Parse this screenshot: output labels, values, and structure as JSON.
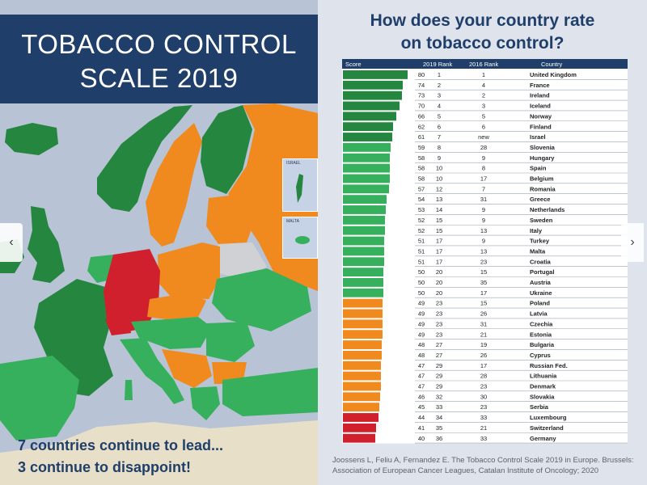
{
  "poster": {
    "title_line1": "TOBACCO CONTROL",
    "title_line2": "SCALE 2019",
    "subtitle_line1": "7 countries continue to lead...",
    "subtitle_line2": "3 continue to disappoint!",
    "inset_israel": "ISRAEL",
    "inset_malta": "MALTA"
  },
  "nav": {
    "prev_icon": "‹",
    "next_icon": "›"
  },
  "colors": {
    "navy": "#1f3f6a",
    "dark_green": "#24863f",
    "green": "#36b05c",
    "orange": "#f08a1e",
    "red": "#d0202e",
    "grey": "#cfd1d4"
  },
  "chart_data": {
    "type": "bar",
    "title": "How does your country rate on tobacco control?",
    "columns": [
      "Score",
      "2019 Rank",
      "2016 Rank",
      "Country"
    ],
    "rows": [
      {
        "score": 80,
        "rank2019": "1",
        "rank2016": "1",
        "country": "United Kingdom",
        "group": "dark_green"
      },
      {
        "score": 74,
        "rank2019": "2",
        "rank2016": "4",
        "country": "France",
        "group": "dark_green"
      },
      {
        "score": 73,
        "rank2019": "3",
        "rank2016": "2",
        "country": "Ireland",
        "group": "dark_green"
      },
      {
        "score": 70,
        "rank2019": "4",
        "rank2016": "3",
        "country": "Iceland",
        "group": "dark_green"
      },
      {
        "score": 66,
        "rank2019": "5",
        "rank2016": "5",
        "country": "Norway",
        "group": "dark_green"
      },
      {
        "score": 62,
        "rank2019": "6",
        "rank2016": "6",
        "country": "Finland",
        "group": "dark_green"
      },
      {
        "score": 61,
        "rank2019": "7",
        "rank2016": "new",
        "country": "Israel",
        "group": "dark_green"
      },
      {
        "score": 59,
        "rank2019": "8",
        "rank2016": "28",
        "country": "Slovenia",
        "group": "green"
      },
      {
        "score": 58,
        "rank2019": "9",
        "rank2016": "9",
        "country": "Hungary",
        "group": "green"
      },
      {
        "score": 58,
        "rank2019": "10",
        "rank2016": "8",
        "country": "Spain",
        "group": "green"
      },
      {
        "score": 58,
        "rank2019": "10",
        "rank2016": "17",
        "country": "Belgium",
        "group": "green"
      },
      {
        "score": 57,
        "rank2019": "12",
        "rank2016": "7",
        "country": "Romania",
        "group": "green"
      },
      {
        "score": 54,
        "rank2019": "13",
        "rank2016": "31",
        "country": "Greece",
        "group": "green"
      },
      {
        "score": 53,
        "rank2019": "14",
        "rank2016": "9",
        "country": "Netherlands",
        "group": "green"
      },
      {
        "score": 52,
        "rank2019": "15",
        "rank2016": "9",
        "country": "Sweden",
        "group": "green"
      },
      {
        "score": 52,
        "rank2019": "15",
        "rank2016": "13",
        "country": "Italy",
        "group": "green"
      },
      {
        "score": 51,
        "rank2019": "17",
        "rank2016": "9",
        "country": "Turkey",
        "group": "green"
      },
      {
        "score": 51,
        "rank2019": "17",
        "rank2016": "13",
        "country": "Malta",
        "group": "green"
      },
      {
        "score": 51,
        "rank2019": "17",
        "rank2016": "23",
        "country": "Croatia",
        "group": "green"
      },
      {
        "score": 50,
        "rank2019": "20",
        "rank2016": "15",
        "country": "Portugal",
        "group": "green"
      },
      {
        "score": 50,
        "rank2019": "20",
        "rank2016": "35",
        "country": "Austria",
        "group": "green"
      },
      {
        "score": 50,
        "rank2019": "20",
        "rank2016": "17",
        "country": "Ukraine",
        "group": "green"
      },
      {
        "score": 49,
        "rank2019": "23",
        "rank2016": "15",
        "country": "Poland",
        "group": "orange"
      },
      {
        "score": 49,
        "rank2019": "23",
        "rank2016": "26",
        "country": "Latvia",
        "group": "orange"
      },
      {
        "score": 49,
        "rank2019": "23",
        "rank2016": "31",
        "country": "Czechia",
        "group": "orange"
      },
      {
        "score": 49,
        "rank2019": "23",
        "rank2016": "21",
        "country": "Estonia",
        "group": "orange"
      },
      {
        "score": 48,
        "rank2019": "27",
        "rank2016": "19",
        "country": "Bulgaria",
        "group": "orange"
      },
      {
        "score": 48,
        "rank2019": "27",
        "rank2016": "26",
        "country": "Cyprus",
        "group": "orange"
      },
      {
        "score": 47,
        "rank2019": "29",
        "rank2016": "17",
        "country": "Russian Fed.",
        "group": "orange"
      },
      {
        "score": 47,
        "rank2019": "29",
        "rank2016": "28",
        "country": "Lithuania",
        "group": "orange"
      },
      {
        "score": 47,
        "rank2019": "29",
        "rank2016": "23",
        "country": "Denmark",
        "group": "orange"
      },
      {
        "score": 46,
        "rank2019": "32",
        "rank2016": "30",
        "country": "Slovakia",
        "group": "orange"
      },
      {
        "score": 45,
        "rank2019": "33",
        "rank2016": "23",
        "country": "Serbia",
        "group": "orange"
      },
      {
        "score": 44,
        "rank2019": "34",
        "rank2016": "33",
        "country": "Luxembourg",
        "group": "red"
      },
      {
        "score": 41,
        "rank2019": "35",
        "rank2016": "21",
        "country": "Switzerland",
        "group": "red"
      },
      {
        "score": 40,
        "rank2019": "36",
        "rank2016": "33",
        "country": "Germany",
        "group": "red"
      }
    ],
    "source": "Joossens L, Feliu A, Fernandez E. The Tobacco Control Scale 2019 in Europe. Brussels: Association of European Cancer Leagues, Catalan Institute of Oncology; 2020"
  }
}
